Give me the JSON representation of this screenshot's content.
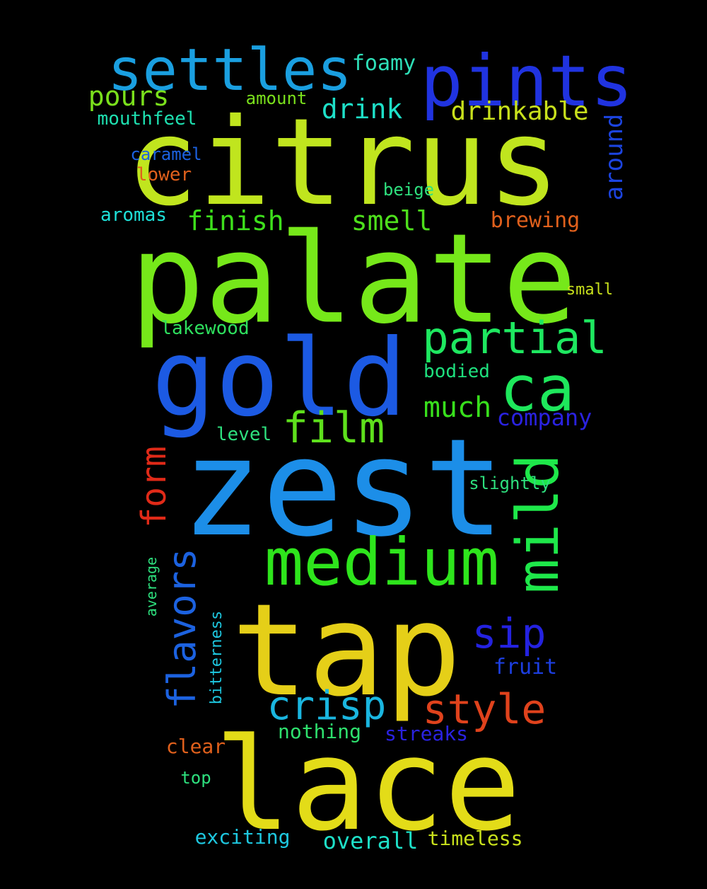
{
  "word_cloud": {
    "background": "#000000",
    "words": [
      {
        "text": "citrus",
        "color": "#c0e51e",
        "vertical": false
      },
      {
        "text": "palate",
        "color": "#76e81a",
        "vertical": false
      },
      {
        "text": "zest",
        "color": "#1c8ee8",
        "vertical": false
      },
      {
        "text": "tap",
        "color": "#e5cf18",
        "vertical": false
      },
      {
        "text": "lace",
        "color": "#e3dc18",
        "vertical": false
      },
      {
        "text": "gold",
        "color": "#1c5ae3",
        "vertical": false
      },
      {
        "text": "pints",
        "color": "#2033e0",
        "vertical": false
      },
      {
        "text": "settles",
        "color": "#1a9fe0",
        "vertical": false
      },
      {
        "text": "medium",
        "color": "#2ee51c",
        "vertical": false
      },
      {
        "text": "mild",
        "color": "#1ee84a",
        "vertical": true
      },
      {
        "text": "ca",
        "color": "#1ee85c",
        "vertical": false
      },
      {
        "text": "partial",
        "color": "#1ee860",
        "vertical": false
      },
      {
        "text": "film",
        "color": "#5ee01c",
        "vertical": false
      },
      {
        "text": "flavors",
        "color": "#1c62e0",
        "vertical": true
      },
      {
        "text": "crisp",
        "color": "#1ab6e0",
        "vertical": false
      },
      {
        "text": "style",
        "color": "#e0421c",
        "vertical": false
      },
      {
        "text": "sip",
        "color": "#2422e0",
        "vertical": false
      },
      {
        "text": "form",
        "color": "#e02a18",
        "vertical": true
      },
      {
        "text": "much",
        "color": "#38e01c",
        "vertical": false
      },
      {
        "text": "drink",
        "color": "#1ee0c8",
        "vertical": false
      },
      {
        "text": "drinkable",
        "color": "#c8e01c",
        "vertical": false
      },
      {
        "text": "pours",
        "color": "#7ae01c",
        "vertical": false
      },
      {
        "text": "finish",
        "color": "#3ee01c",
        "vertical": false
      },
      {
        "text": "smell",
        "color": "#4ee01c",
        "vertical": false
      },
      {
        "text": "around",
        "color": "#1c44e0",
        "vertical": true
      },
      {
        "text": "foamy",
        "color": "#2ee0b8",
        "vertical": false
      },
      {
        "text": "company",
        "color": "#2a22e0",
        "vertical": false
      },
      {
        "text": "fruit",
        "color": "#1c3ee0",
        "vertical": false
      },
      {
        "text": "brewing",
        "color": "#e0601c",
        "vertical": false
      },
      {
        "text": "mouthfeel",
        "color": "#1ee0b0",
        "vertical": false
      },
      {
        "text": "caramel",
        "color": "#1c62e0",
        "vertical": false
      },
      {
        "text": "lower",
        "color": "#e0601c",
        "vertical": false
      },
      {
        "text": "aromas",
        "color": "#1ee0d8",
        "vertical": false
      },
      {
        "text": "lakewood",
        "color": "#2ee05e",
        "vertical": false
      },
      {
        "text": "bodied",
        "color": "#1ee07e",
        "vertical": false
      },
      {
        "text": "level",
        "color": "#2ee07e",
        "vertical": false
      },
      {
        "text": "slightly",
        "color": "#2ee07e",
        "vertical": false
      },
      {
        "text": "nothing",
        "color": "#2ee06e",
        "vertical": false
      },
      {
        "text": "streaks",
        "color": "#2a22e0",
        "vertical": false
      },
      {
        "text": "clear",
        "color": "#e0601c",
        "vertical": false
      },
      {
        "text": "top",
        "color": "#2ee07e",
        "vertical": false
      },
      {
        "text": "exciting",
        "color": "#1ec8e0",
        "vertical": false
      },
      {
        "text": "overall",
        "color": "#1ee0c8",
        "vertical": false
      },
      {
        "text": "timeless",
        "color": "#c8e01c",
        "vertical": false
      },
      {
        "text": "amount",
        "color": "#7ae01c",
        "vertical": false
      },
      {
        "text": "beige",
        "color": "#2ee07e",
        "vertical": false
      },
      {
        "text": "small",
        "color": "#c8e01c",
        "vertical": false
      },
      {
        "text": "average",
        "color": "#2ee07e",
        "vertical": true
      },
      {
        "text": "bitterness",
        "color": "#1ec8e0",
        "vertical": true
      }
    ]
  }
}
